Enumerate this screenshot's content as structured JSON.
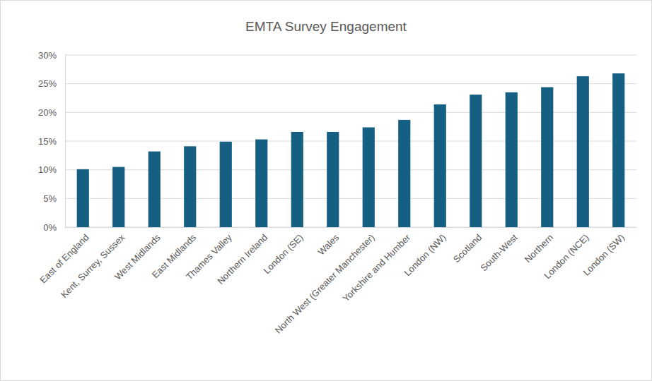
{
  "chart_data": {
    "type": "bar",
    "title": "EMTA Survey Engagement",
    "categories": [
      "East of England",
      "Kent, Surrey, Sussex",
      "West Midlands",
      "East Midlands",
      "Thames Valley",
      "Northern Ireland",
      "London (SE)",
      "Wales",
      "North West (Greater Manchester)",
      "Yorkshire and Humber",
      "London (NW)",
      "Scotland",
      "South-West",
      "Northern",
      "London (NCE)",
      "London (SW)"
    ],
    "values": [
      10.1,
      10.5,
      13.2,
      14.1,
      14.9,
      15.3,
      16.6,
      16.6,
      17.4,
      18.7,
      21.4,
      23.1,
      23.5,
      24.4,
      26.3,
      26.8
    ],
    "color": "#156082",
    "ylim": [
      0,
      30
    ],
    "yticks": [
      {
        "value": 0,
        "label": "0%"
      },
      {
        "value": 5,
        "label": "5%"
      },
      {
        "value": 10,
        "label": "10%"
      },
      {
        "value": 15,
        "label": "15%"
      },
      {
        "value": 20,
        "label": "20%"
      },
      {
        "value": 25,
        "label": "25%"
      },
      {
        "value": 30,
        "label": "30%"
      }
    ],
    "grid": true
  }
}
